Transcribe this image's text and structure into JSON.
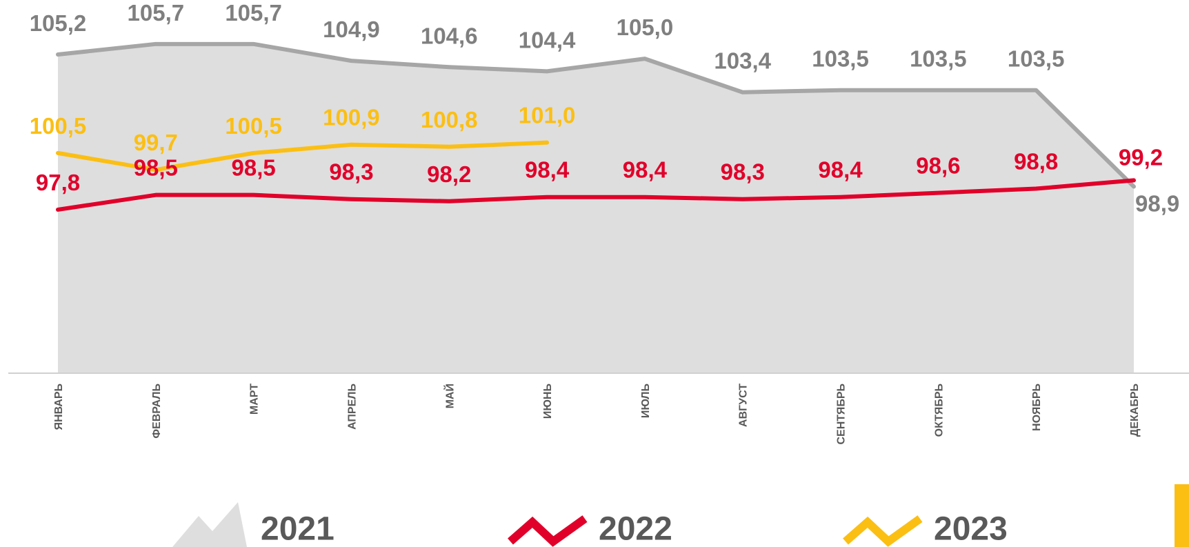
{
  "chart_data": {
    "type": "line",
    "categories": [
      "ЯНВАРЬ",
      "ФЕВРАЛЬ",
      "МАРТ",
      "АПРЕЛЬ",
      "МАЙ",
      "ИЮНЬ",
      "ИЮЛЬ",
      "АВГУСТ",
      "СЕНТЯБРЬ",
      "ОКТЯБРЬ",
      "НОЯБРЬ",
      "ДЕКАБРЬ"
    ],
    "ylim": [
      90,
      107.8
    ],
    "series": [
      {
        "name": "2021",
        "color": "#a6a6a6",
        "area_color": "#dedede",
        "label_color": "#7f7f7f",
        "area": true,
        "values": [
          105.2,
          105.7,
          105.7,
          104.9,
          104.6,
          104.4,
          105.0,
          103.4,
          103.5,
          103.5,
          103.5,
          98.9
        ],
        "value_labels": [
          "105,2",
          "105,7",
          "105,7",
          "104,9",
          "104,6",
          "104,4",
          "105,0",
          "103,4",
          "103,5",
          "103,5",
          "103,5",
          "98,9"
        ]
      },
      {
        "name": "2022",
        "color": "#e0002a",
        "values": [
          97.8,
          98.5,
          98.5,
          98.3,
          98.2,
          98.4,
          98.4,
          98.3,
          98.4,
          98.6,
          98.8,
          99.2
        ],
        "value_labels": [
          "97,8",
          "98,5",
          "98,5",
          "98,3",
          "98,2",
          "98,4",
          "98,4",
          "98,3",
          "98,4",
          "98,6",
          "98,8",
          "99,2"
        ]
      },
      {
        "name": "2023",
        "color": "#fbbf14",
        "values": [
          100.5,
          99.7,
          100.5,
          100.9,
          100.8,
          101.0,
          null,
          null,
          null,
          null,
          null,
          null
        ],
        "value_labels": [
          "100,5",
          "99,7",
          "100,5",
          "100,9",
          "100,8",
          "101,0",
          null,
          null,
          null,
          null,
          null,
          null
        ]
      }
    ]
  }
}
